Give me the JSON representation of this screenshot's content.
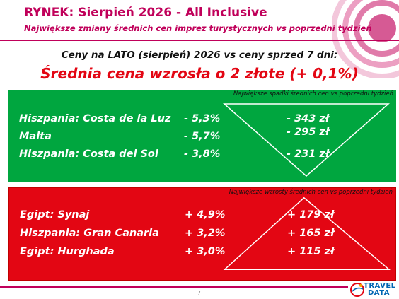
{
  "slide": {
    "title": "RYNEK: Sierpień 2026 - All Inclusive",
    "subtitle": "Największe zmiany średnich cen imprez turystycznych vs poprzedni tydzień",
    "comparison": "Ceny na LATO (sierpień) 2026 vs ceny sprzed 7 dni:",
    "headline": "Średnia cena wzrosła o 2 złote (+ 0,1%)",
    "page_number": "7"
  },
  "decreases": {
    "caption": "Największe spadki średnich cen vs poprzedni tydzień",
    "rows": [
      {
        "destination": "Hiszpania: Costa de la Luz",
        "percent": "- 5,3%",
        "amount": "- 343 zł"
      },
      {
        "destination": "Malta",
        "percent": "- 5,7%",
        "amount": "- 295 zł"
      },
      {
        "destination": "Hiszpania: Costa del Sol",
        "percent": "- 3,8%",
        "amount": "- 231 zł"
      }
    ]
  },
  "increases": {
    "caption": "Największe wzrosty średnich cen vs poprzedni tydzień",
    "rows": [
      {
        "destination": "Egipt: Synaj",
        "percent": "+ 4,9%",
        "amount": "+ 179 zł"
      },
      {
        "destination": "Hiszpania: Gran Canaria",
        "percent": "+ 3,2%",
        "amount": "+ 165 zł"
      },
      {
        "destination": "Egipt: Hurghada",
        "percent": "+ 3,0%",
        "amount": "+ 115 zł"
      }
    ]
  },
  "logo": {
    "line1": "TRAVEL",
    "line2": "DATA"
  },
  "colors": {
    "brand": "#c0005a",
    "headline": "#e30613",
    "decrease_panel": "#00a63f",
    "increase_panel": "#e30613",
    "logo": "#0066b3"
  }
}
